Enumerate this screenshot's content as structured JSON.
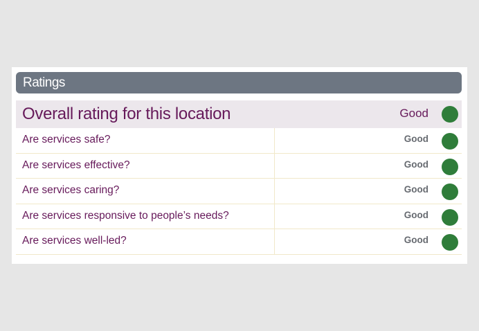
{
  "card": {
    "title": "Ratings",
    "overall": {
      "label": "Overall rating for this location",
      "rating": "Good",
      "indicator_icon": "green-circle-icon",
      "indicator_color": "#2f7d3a"
    },
    "rows": [
      {
        "label": "Are services safe?",
        "rating": "Good",
        "indicator_icon": "green-circle-icon"
      },
      {
        "label": "Are services effective?",
        "rating": "Good",
        "indicator_icon": "green-circle-icon"
      },
      {
        "label": "Are services caring?",
        "rating": "Good",
        "indicator_icon": "green-circle-icon"
      },
      {
        "label": "Are services responsive to people’s needs?",
        "rating": "Good",
        "indicator_icon": "green-circle-icon"
      },
      {
        "label": "Are services well-led?",
        "rating": "Good",
        "indicator_icon": "green-circle-icon"
      }
    ]
  },
  "colors": {
    "header_bg": "#6d7682",
    "label_text": "#66195a",
    "overall_bg": "#ece7ec",
    "good": "#2f7d3a"
  }
}
